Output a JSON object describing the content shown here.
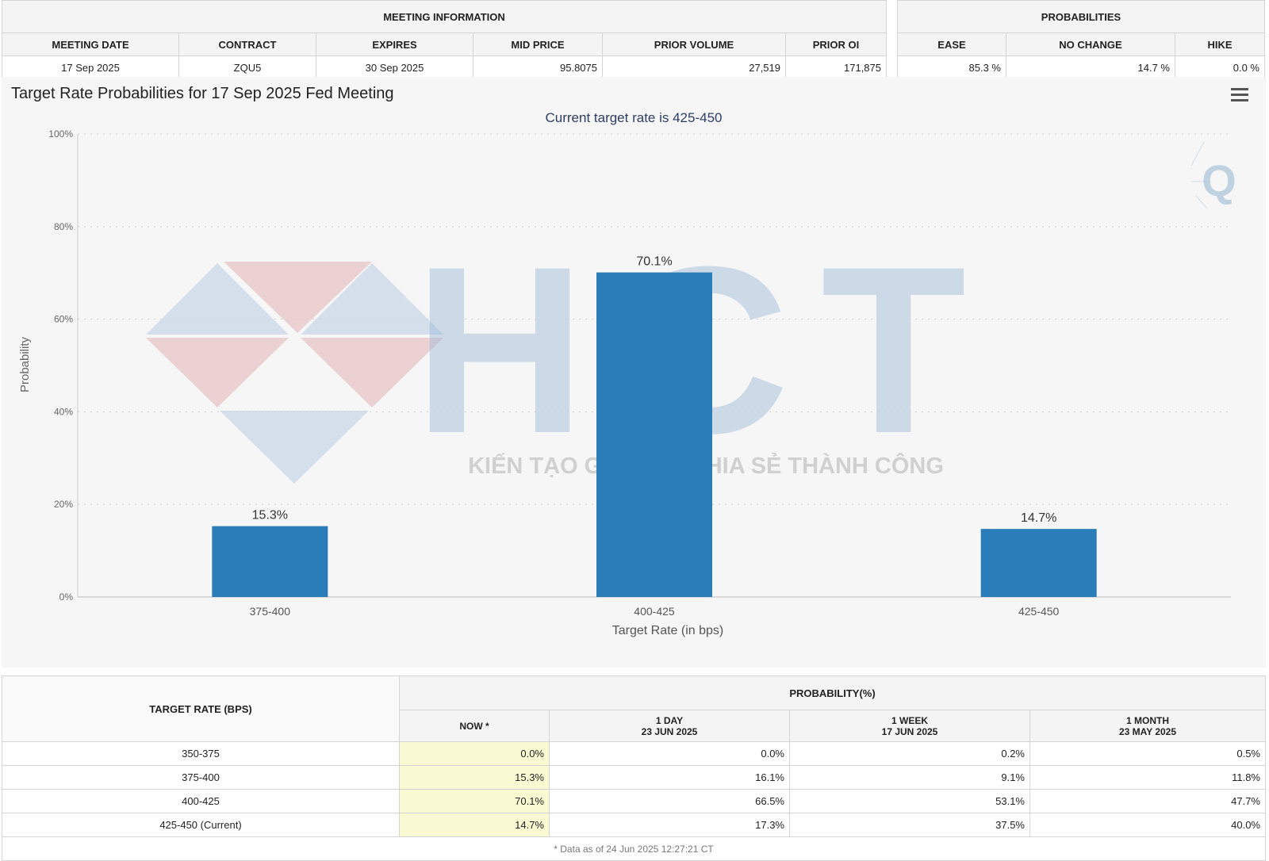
{
  "meeting_info": {
    "section_title": "MEETING INFORMATION",
    "headers": [
      "MEETING DATE",
      "CONTRACT",
      "EXPIRES",
      "MID PRICE",
      "PRIOR VOLUME",
      "PRIOR OI"
    ],
    "values": [
      "17 Sep 2025",
      "ZQU5",
      "30 Sep 2025",
      "95.8075",
      "27,519",
      "171,875"
    ]
  },
  "probabilities_box": {
    "section_title": "PROBABILITIES",
    "headers": [
      "EASE",
      "NO CHANGE",
      "HIKE"
    ],
    "values": [
      "85.3 %",
      "14.7 %",
      "0.0 %"
    ]
  },
  "chart_data": {
    "type": "bar",
    "title": "Target Rate Probabilities for 17 Sep 2025 Fed Meeting",
    "subtitle": "Current target rate is 425-450",
    "xlabel": "Target Rate (in bps)",
    "ylabel": "Probability",
    "categories": [
      "375-400",
      "400-425",
      "425-450"
    ],
    "values": [
      15.3,
      70.1,
      14.7
    ],
    "data_labels": [
      "15.3%",
      "70.1%",
      "14.7%"
    ],
    "ylim": [
      0,
      100
    ],
    "yticks": [
      "0%",
      "20%",
      "40%",
      "60%",
      "80%",
      "100%"
    ],
    "grid": true,
    "bar_color": "#2a7db8"
  },
  "watermark": {
    "letters": "HCT",
    "tagline": "KIẾN TẠO GIÁ TRỊ - CHIA SẺ THÀNH CÔNG",
    "corner_logo": "Q"
  },
  "prob_table": {
    "col_header_rate": "TARGET RATE (BPS)",
    "group_header": "PROBABILITY(%)",
    "sub_headers": [
      {
        "line1": "NOW *",
        "line2": ""
      },
      {
        "line1": "1 DAY",
        "line2": "23 JUN 2025"
      },
      {
        "line1": "1 WEEK",
        "line2": "17 JUN 2025"
      },
      {
        "line1": "1 MONTH",
        "line2": "23 MAY 2025"
      }
    ],
    "rows": [
      {
        "rate": "350-375",
        "now": "0.0%",
        "day": "0.0%",
        "week": "0.2%",
        "month": "0.5%"
      },
      {
        "rate": "375-400",
        "now": "15.3%",
        "day": "16.1%",
        "week": "9.1%",
        "month": "11.8%"
      },
      {
        "rate": "400-425",
        "now": "70.1%",
        "day": "66.5%",
        "week": "53.1%",
        "month": "47.7%"
      },
      {
        "rate": "425-450 (Current)",
        "now": "14.7%",
        "day": "17.3%",
        "week": "37.5%",
        "month": "40.0%"
      }
    ],
    "footnote": "* Data as of 24 Jun 2025 12:27:21 CT"
  }
}
